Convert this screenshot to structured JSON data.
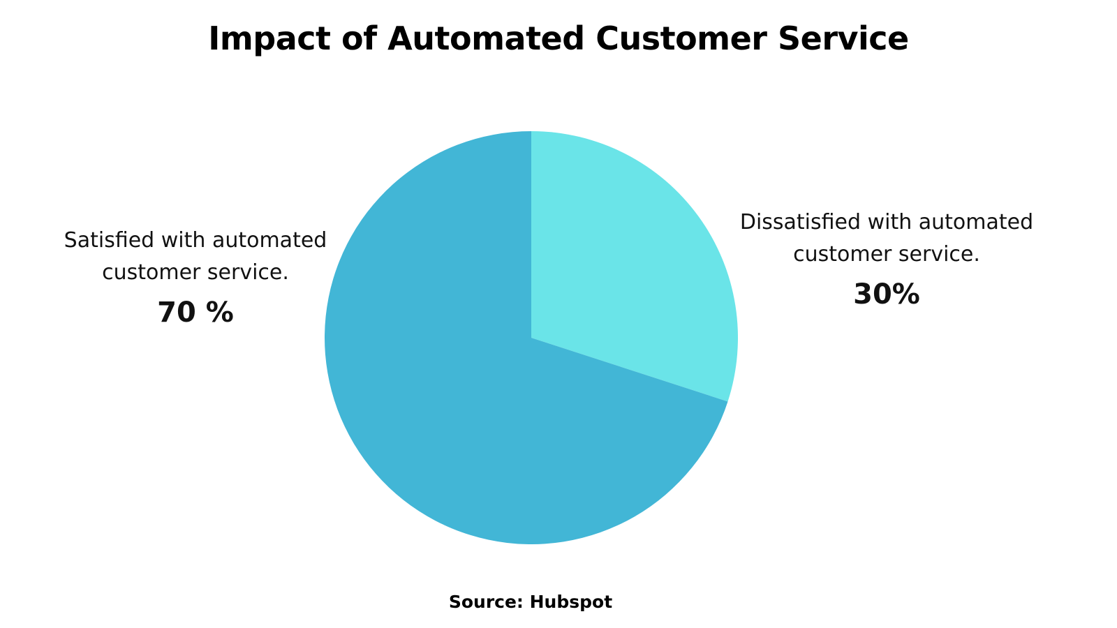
{
  "chart_data": {
    "type": "pie",
    "title": "Impact of Automated Customer Service",
    "source": "Source: Hubspot",
    "slices": [
      {
        "label": "Satisfied with automated customer service.",
        "label_lines": [
          "Satisfied with automated",
          "customer service."
        ],
        "value": 70,
        "value_label": "70 %",
        "color": "#42b6d6"
      },
      {
        "label": "Dissatisfied with automated customer service.",
        "label_lines": [
          "Dissatisfied with automated",
          "customer service."
        ],
        "value": 30,
        "value_label": "30%",
        "color": "#6ae4e8"
      }
    ],
    "start": "12 o'clock",
    "direction": "clockwise, Dissatisfied slice first"
  }
}
